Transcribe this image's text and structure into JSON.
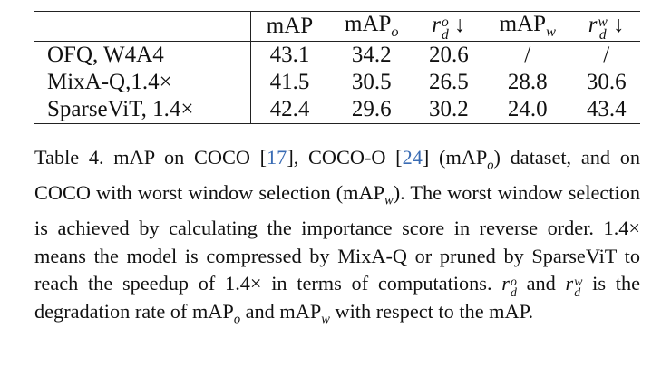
{
  "table": {
    "header": [
      {
        "base": "mAP"
      },
      {
        "base": "mAP",
        "sub": "o"
      },
      {
        "base": "r",
        "sub": "d",
        "sup": "o",
        "arrow": "↓"
      },
      {
        "base": "mAP",
        "sub": "w"
      },
      {
        "base": "r",
        "sub": "d",
        "sup": "w",
        "arrow": "↓"
      }
    ],
    "rows": [
      [
        "OFQ, W4A4",
        "43.1",
        "34.2",
        "20.6",
        "/",
        "/"
      ],
      [
        "MixA-Q,1.4×",
        "41.5",
        "30.5",
        "26.5",
        "28.8",
        "30.6"
      ],
      [
        "SparseViT, 1.4×",
        "42.4",
        "29.6",
        "30.2",
        "24.0",
        "43.4"
      ]
    ]
  },
  "caption": [
    {
      "text": "Table 4.  mAP on COCO ["
    },
    {
      "ref": "17"
    },
    {
      "text": "], COCO-O ["
    },
    {
      "ref": "24"
    },
    {
      "text": "] (mAP"
    },
    {
      "sub": "o"
    },
    {
      "text": ") dataset, and on COCO with worst window selection (mAP"
    },
    {
      "sub": "w"
    },
    {
      "text": "). The worst window selection is achieved by calculating the importance score in reverse order. 1.4× means the model is compressed by MixA-Q or pruned by SparseViT to reach the speedup of 1.4× in terms of computations. "
    },
    {
      "math": "r",
      "sub": "d",
      "sup": "o"
    },
    {
      "text": " and "
    },
    {
      "math": "r",
      "sub": "d",
      "sup": "w"
    },
    {
      "text": " is the degradation rate of mAP"
    },
    {
      "sub": "o"
    },
    {
      "text": " and mAP"
    },
    {
      "sub": "w"
    },
    {
      "text": " with respect to the mAP."
    }
  ]
}
